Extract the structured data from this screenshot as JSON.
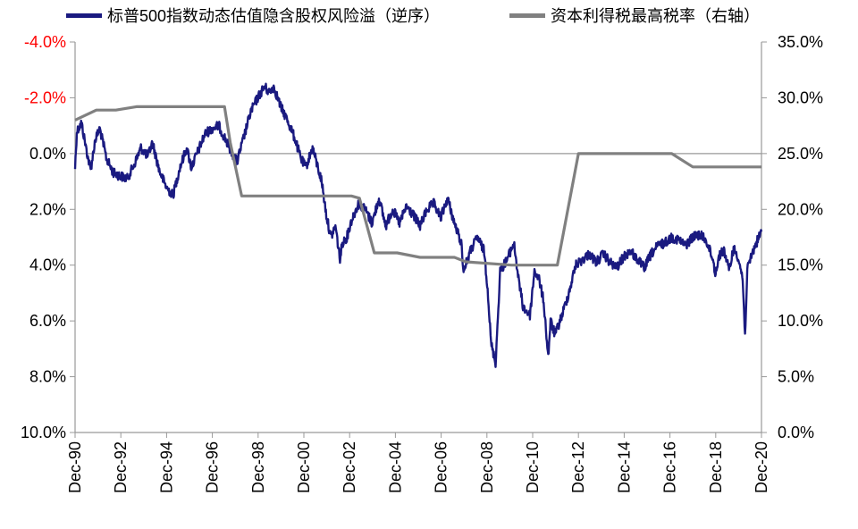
{
  "chart_data": {
    "type": "line",
    "title": "",
    "colors": {
      "series1": "#1a1a80",
      "series2": "#808080",
      "negative_tick": "#ff0000",
      "axis": "#999999",
      "text": "#000000"
    },
    "x_tick_labels": [
      "Dec-90",
      "Dec-92",
      "Dec-94",
      "Dec-96",
      "Dec-98",
      "Dec-00",
      "Dec-02",
      "Dec-04",
      "Dec-06",
      "Dec-08",
      "Dec-10",
      "Dec-12",
      "Dec-14",
      "Dec-16",
      "Dec-18",
      "Dec-20"
    ],
    "xlim": [
      1990.92,
      2020.92
    ],
    "left_axis": {
      "reversed": true,
      "ylim": [
        -4,
        10
      ],
      "tick_labels": [
        "-4.0%",
        "-2.0%",
        "0.0%",
        "2.0%",
        "4.0%",
        "6.0%",
        "8.0%",
        "10.0%"
      ],
      "tick_values": [
        -4,
        -2,
        0,
        2,
        4,
        6,
        8,
        10
      ]
    },
    "right_axis": {
      "ylim": [
        0,
        35
      ],
      "tick_labels": [
        "35.0%",
        "30.0%",
        "25.0%",
        "20.0%",
        "15.0%",
        "10.0%",
        "5.0%",
        "0.0%"
      ],
      "tick_values": [
        35,
        30,
        25,
        20,
        15,
        10,
        5,
        0
      ]
    },
    "series": [
      {
        "name": "标普500指数动态估值隐含股权风险溢（逆序）",
        "axis": "left",
        "x": [
          1990.92,
          1991.0,
          1991.2,
          1991.4,
          1991.6,
          1991.8,
          1992.0,
          1992.3,
          1992.6,
          1992.9,
          1993.2,
          1993.5,
          1993.8,
          1994.1,
          1994.3,
          1994.6,
          1994.9,
          1995.2,
          1995.5,
          1995.8,
          1996.0,
          1996.3,
          1996.6,
          1996.9,
          1997.2,
          1997.5,
          1997.8,
          1998.0,
          1998.3,
          1998.6,
          1998.9,
          1999.2,
          1999.4,
          1999.6,
          1999.9,
          2000.2,
          2000.5,
          2000.8,
          2001.0,
          2001.3,
          2001.5,
          2001.7,
          2001.9,
          2002.1,
          2002.3,
          2002.5,
          2002.6,
          2002.8,
          2003.0,
          2003.3,
          2003.6,
          2003.9,
          2004.2,
          2004.5,
          2004.8,
          2005.1,
          2005.4,
          2005.7,
          2006.0,
          2006.3,
          2006.6,
          2006.9,
          2007.2,
          2007.5,
          2007.8,
          2007.9,
          2008.2,
          2008.5,
          2008.8,
          2008.95,
          2009.1,
          2009.3,
          2009.5,
          2009.8,
          2010.1,
          2010.3,
          2010.5,
          2010.8,
          2011.0,
          2011.2,
          2011.4,
          2011.6,
          2011.7,
          2011.9,
          2012.2,
          2012.5,
          2012.8,
          2013.1,
          2013.4,
          2013.7,
          2014.0,
          2014.3,
          2014.6,
          2014.9,
          2015.2,
          2015.5,
          2015.8,
          2016.1,
          2016.4,
          2016.7,
          2017.0,
          2017.3,
          2017.6,
          2017.9,
          2018.2,
          2018.5,
          2018.8,
          2018.9,
          2019.1,
          2019.3,
          2019.5,
          2019.7,
          2019.9,
          2020.1,
          2020.2,
          2020.3,
          2020.5,
          2020.7,
          2020.92
        ],
        "values": [
          0.5,
          -0.8,
          -1.1,
          -0.2,
          0.6,
          -0.5,
          -0.9,
          0.2,
          0.7,
          0.8,
          0.9,
          0.4,
          -0.2,
          0.1,
          -0.4,
          0.6,
          1.2,
          1.5,
          0.5,
          -0.2,
          0.5,
          -0.1,
          -0.7,
          -0.9,
          -1.0,
          -0.5,
          0.0,
          0.3,
          -0.6,
          -1.5,
          -2.0,
          -2.4,
          -2.2,
          -2.4,
          -1.7,
          -1.2,
          -0.6,
          0.2,
          0.5,
          -0.2,
          0.4,
          1.0,
          2.2,
          3.0,
          2.6,
          3.8,
          3.2,
          3.0,
          2.4,
          1.8,
          2.0,
          2.5,
          1.6,
          2.6,
          2.0,
          2.5,
          1.9,
          2.2,
          2.6,
          2.0,
          1.8,
          2.3,
          1.6,
          2.5,
          3.2,
          4.2,
          3.5,
          3.0,
          3.5,
          4.8,
          6.8,
          7.5,
          4.2,
          3.8,
          3.2,
          4.5,
          5.5,
          5.8,
          4.2,
          4.5,
          5.3,
          7.3,
          6.0,
          6.5,
          5.8,
          5.0,
          4.0,
          3.8,
          3.6,
          3.9,
          3.6,
          3.9,
          4.1,
          3.7,
          3.5,
          3.8,
          4.1,
          3.6,
          3.3,
          3.2,
          3.0,
          3.1,
          3.3,
          3.0,
          2.9,
          3.1,
          3.8,
          4.3,
          3.6,
          3.5,
          4.2,
          3.4,
          3.7,
          4.5,
          6.5,
          4.2,
          3.6,
          3.2,
          2.8
        ],
        "color": "#1a1a80"
      },
      {
        "name": "资本利得税最高税率（右轴）",
        "axis": "right",
        "x": [
          1990.92,
          1991.85,
          1992.7,
          1993.6,
          1994.5,
          1995.5,
          1996.5,
          1997.3,
          1997.45,
          1997.7,
          1998.2,
          1998.6,
          2001.0,
          2003.0,
          2003.35,
          2004.0,
          2005.0,
          2006.0,
          2007.5,
          2008.0,
          2010.0,
          2012.0,
          2012.92,
          2013.0,
          2015.0,
          2017.0,
          2017.92,
          2018.0,
          2019.0,
          2020.92
        ],
        "values": [
          28.0,
          28.9,
          28.9,
          29.2,
          29.2,
          29.2,
          29.2,
          29.2,
          29.2,
          26.0,
          21.2,
          21.2,
          21.2,
          21.2,
          21.0,
          16.1,
          16.1,
          15.7,
          15.7,
          15.3,
          15.0,
          15.0,
          25.0,
          25.0,
          25.0,
          25.0,
          23.8,
          23.8,
          23.8,
          23.8
        ],
        "color": "#808080"
      }
    ],
    "grid": false,
    "legend_position": "top"
  }
}
